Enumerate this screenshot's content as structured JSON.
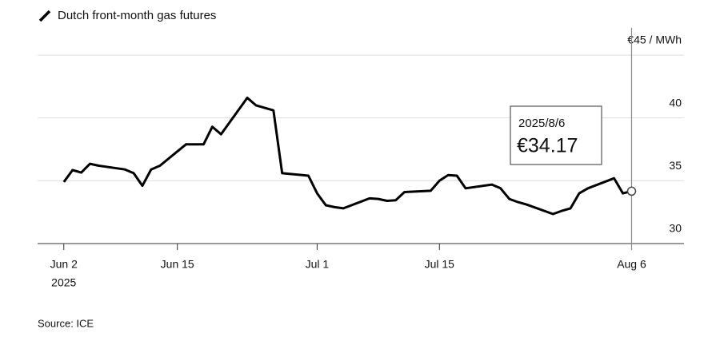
{
  "chart_data": {
    "type": "line",
    "title": "Dutch front-month gas futures",
    "source": "Source: ICE",
    "x": [
      "2025-06-02",
      "2025-06-03",
      "2025-06-04",
      "2025-06-05",
      "2025-06-06",
      "2025-06-09",
      "2025-06-10",
      "2025-06-11",
      "2025-06-12",
      "2025-06-13",
      "2025-06-16",
      "2025-06-17",
      "2025-06-18",
      "2025-06-19",
      "2025-06-20",
      "2025-06-23",
      "2025-06-24",
      "2025-06-25",
      "2025-06-26",
      "2025-06-27",
      "2025-06-30",
      "2025-07-01",
      "2025-07-02",
      "2025-07-03",
      "2025-07-04",
      "2025-07-07",
      "2025-07-08",
      "2025-07-09",
      "2025-07-10",
      "2025-07-11",
      "2025-07-14",
      "2025-07-15",
      "2025-07-16",
      "2025-07-17",
      "2025-07-18",
      "2025-07-21",
      "2025-07-22",
      "2025-07-23",
      "2025-07-24",
      "2025-07-25",
      "2025-07-28",
      "2025-07-29",
      "2025-07-30",
      "2025-07-31",
      "2025-08-01",
      "2025-08-04",
      "2025-08-05",
      "2025-08-06"
    ],
    "series": [
      {
        "name": "Dutch front-month gas futures",
        "color": "#000000",
        "values": [
          34.9,
          35.85,
          35.65,
          36.35,
          36.2,
          35.9,
          35.6,
          34.6,
          35.9,
          36.2,
          37.9,
          37.9,
          37.9,
          39.3,
          38.7,
          41.6,
          41.0,
          40.8,
          40.6,
          35.6,
          35.4,
          34.0,
          33.05,
          32.9,
          32.8,
          33.6,
          33.55,
          33.4,
          33.45,
          34.1,
          34.2,
          35.0,
          35.45,
          35.4,
          34.4,
          34.7,
          34.4,
          33.55,
          33.3,
          33.1,
          32.35,
          32.6,
          32.8,
          34.0,
          34.4,
          35.2,
          34.0,
          34.17
        ]
      }
    ],
    "annotation": {
      "label": "2025/8/6",
      "value_label": "€34.17"
    },
    "xlim": [
      "2025-05-30",
      "2025-08-12"
    ],
    "xticks": [
      {
        "value": "2025-06-02",
        "label": "Jun 2"
      },
      {
        "value": "2025-06-15",
        "label": "Jun 15"
      },
      {
        "value": "2025-07-01",
        "label": "Jul 1"
      },
      {
        "value": "2025-07-15",
        "label": "Jul 15"
      },
      {
        "value": "2025-08-06",
        "label": "Aug 6"
      }
    ],
    "x_year_label": "2025",
    "ylim": [
      30,
      45
    ],
    "yticks": [
      30,
      35,
      40,
      {
        "value": 45,
        "label": "€45 / MWh"
      }
    ],
    "grid": true
  }
}
